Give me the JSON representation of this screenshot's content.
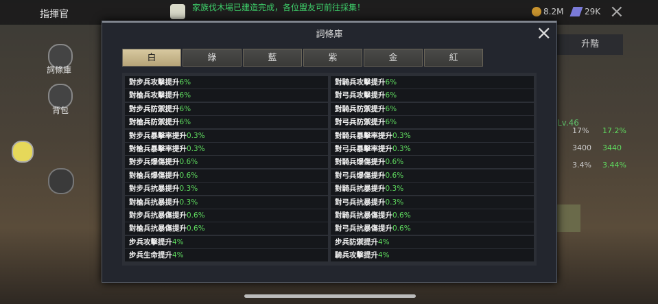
{
  "top_bar": {
    "title": "指揮官",
    "notice": "家族伐木場已建造完成，各位盟友可前往採集！",
    "resource_1": "8.2M",
    "resource_2": "29K"
  },
  "sidebar": {
    "items": [
      "詞條庫",
      "背包"
    ]
  },
  "background_panel": {
    "button": "升階",
    "level": "Lv.46",
    "stats": [
      [
        "17%",
        "17.2%"
      ],
      [
        "3400",
        "3440"
      ],
      [
        "3.4%",
        "3.44%"
      ]
    ]
  },
  "modal": {
    "title": "詞條庫",
    "tabs": [
      "白",
      "綠",
      "藍",
      "紫",
      "金",
      "紅"
    ],
    "active_tab": 0,
    "rows": [
      [
        {
          "name": "對步兵攻擊提升",
          "value": "6%"
        },
        {
          "name": "對騎兵攻擊提升",
          "value": "6%"
        }
      ],
      [
        {
          "name": "對槍兵攻擊提升",
          "value": "6%"
        },
        {
          "name": "對弓兵攻擊提升",
          "value": "6%"
        }
      ],
      [
        {
          "name": "對步兵防禦提升",
          "value": "6%"
        },
        {
          "name": "對騎兵防禦提升",
          "value": "6%"
        }
      ],
      [
        {
          "name": "對槍兵防禦提升",
          "value": "6%"
        },
        {
          "name": "對弓兵防禦提升",
          "value": "6%"
        }
      ],
      [
        {
          "name": "對步兵暴擊率提升",
          "value": "0.3%"
        },
        {
          "name": "對騎兵暴擊率提升",
          "value": "0.3%"
        }
      ],
      [
        {
          "name": "對槍兵暴擊率提升",
          "value": "0.3%"
        },
        {
          "name": "對弓兵暴擊率提升",
          "value": "0.3%"
        }
      ],
      [
        {
          "name": "對步兵爆傷提升",
          "value": "0.6%"
        },
        {
          "name": "對騎兵爆傷提升",
          "value": "0.6%"
        }
      ],
      [
        {
          "name": "對槍兵爆傷提升",
          "value": "0.6%"
        },
        {
          "name": "對弓兵爆傷提升",
          "value": "0.6%"
        }
      ],
      [
        {
          "name": "對步兵抗暴提升",
          "value": "0.3%"
        },
        {
          "name": "對騎兵抗暴提升",
          "value": "0.3%"
        }
      ],
      [
        {
          "name": "對槍兵抗暴提升",
          "value": "0.3%"
        },
        {
          "name": "對弓兵抗暴提升",
          "value": "0.3%"
        }
      ],
      [
        {
          "name": "對步兵抗暴傷提升",
          "value": "0.6%"
        },
        {
          "name": "對騎兵抗暴傷提升",
          "value": "0.6%"
        }
      ],
      [
        {
          "name": "對槍兵抗暴傷提升",
          "value": "0.6%"
        },
        {
          "name": "對弓兵抗暴傷提升",
          "value": "0.6%"
        }
      ],
      [
        {
          "name": "步兵攻擊提升",
          "value": "4%"
        },
        {
          "name": "步兵防禦提升",
          "value": "4%"
        }
      ],
      [
        {
          "name": "步兵生命提升",
          "value": "4%"
        },
        {
          "name": "騎兵攻擊提升",
          "value": "4%"
        }
      ]
    ]
  }
}
